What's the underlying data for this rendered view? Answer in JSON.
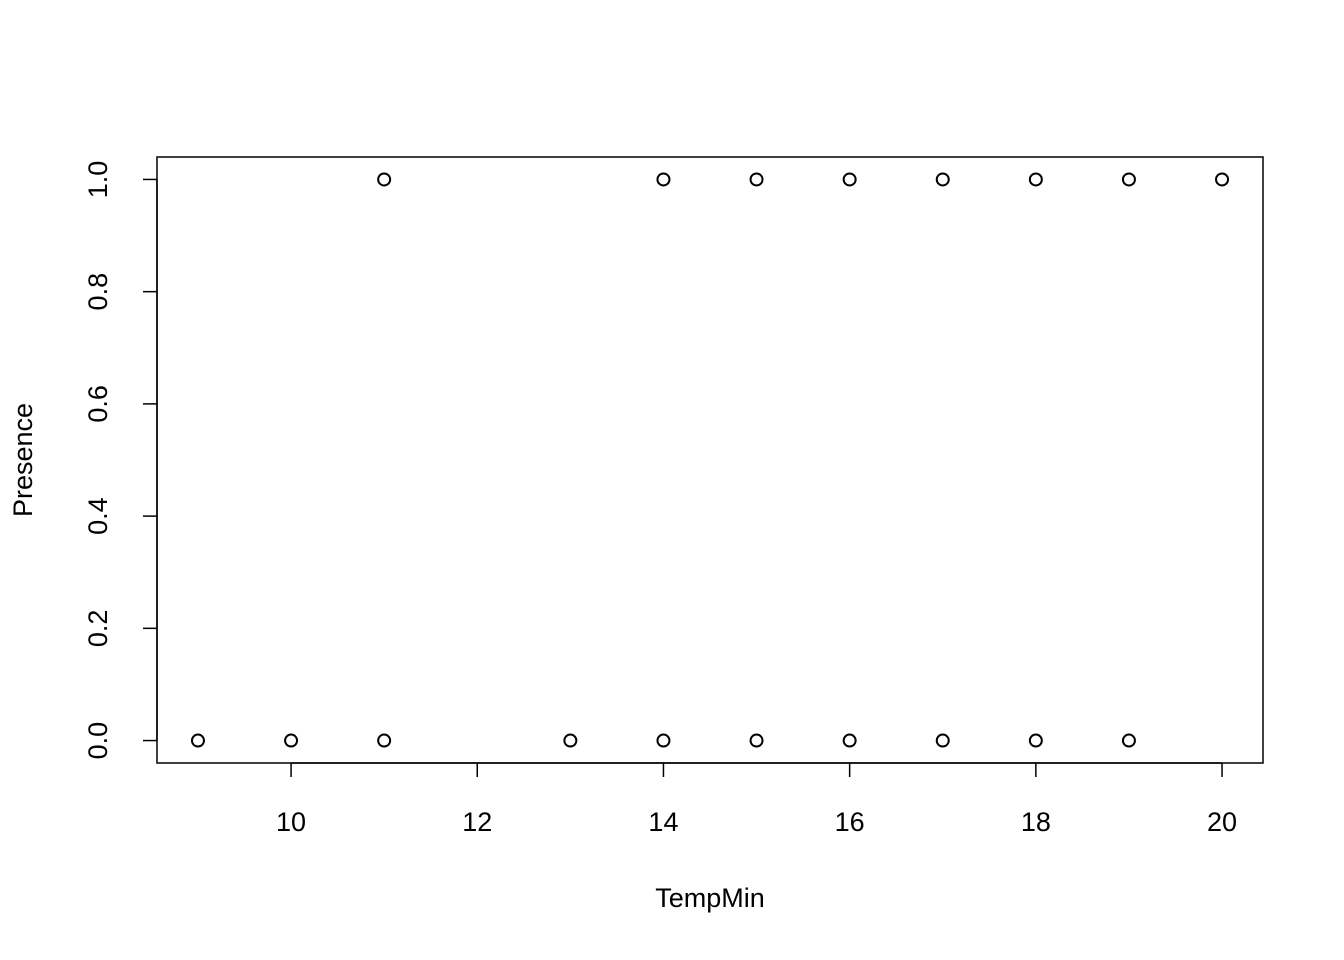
{
  "chart_data": {
    "type": "scatter",
    "x_label": "TempMin",
    "y_label": "Presence",
    "series": [
      {
        "x": [
          9,
          10,
          11,
          11,
          13,
          14,
          14,
          15,
          15,
          16,
          16,
          17,
          17,
          18,
          18,
          19,
          19,
          20
        ],
        "values": [
          0,
          0,
          0,
          1,
          0,
          0,
          1,
          0,
          1,
          0,
          1,
          0,
          1,
          0,
          1,
          0,
          1,
          1
        ],
        "color": "#000000"
      }
    ],
    "xlim": [
      8.56,
      20.44
    ],
    "ylim": [
      -0.04,
      1.04
    ],
    "xticks": [
      10,
      12,
      14,
      16,
      18,
      20
    ],
    "yticks": [
      {
        "value": 0,
        "label": "0.0"
      },
      0.2,
      0.4,
      0.6,
      0.8,
      {
        "value": 1,
        "label": "1.0"
      }
    ],
    "grid": false
  }
}
